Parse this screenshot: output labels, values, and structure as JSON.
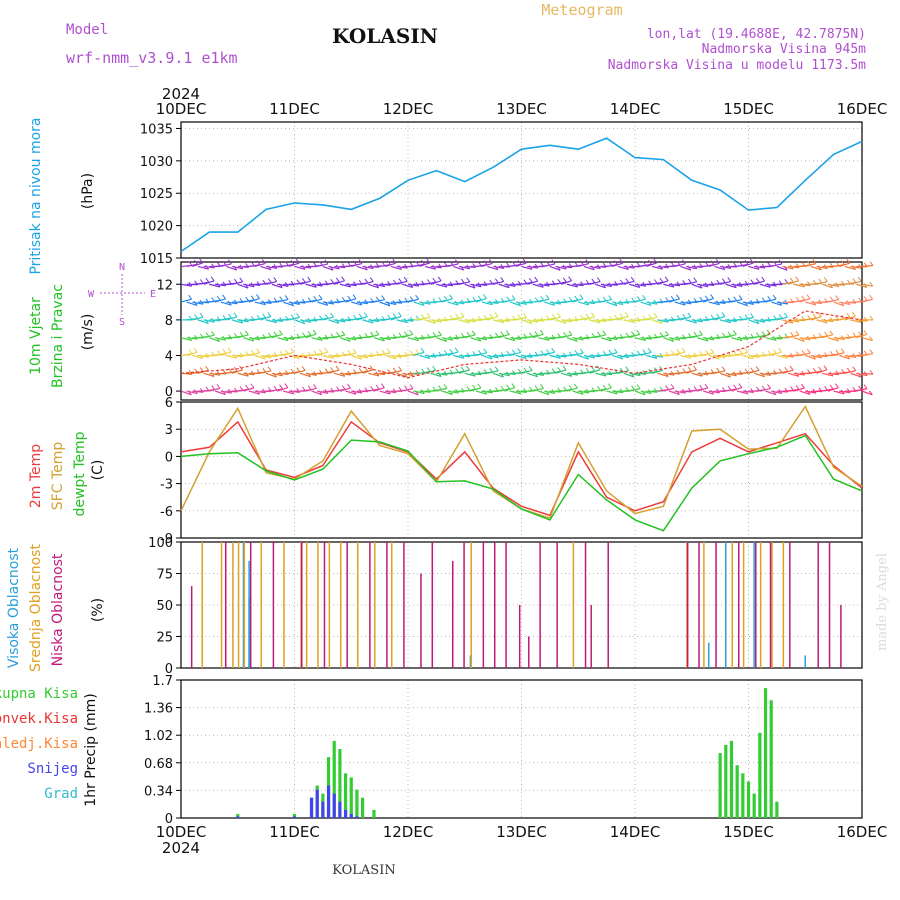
{
  "header": {
    "model_label": "Model",
    "model_name": "wrf-nmm_v3.9.1 e1km",
    "station": "KOLASIN",
    "title": "Meteogram",
    "lonlat": "lon,lat (19.4688E, 42.7875N)",
    "elevation": "Nadmorska Visina 945m",
    "model_elevation": "Nadmorska Visina u modelu 1173.5m",
    "year_top": "2024",
    "year_bottom": "2024",
    "footer_station": "KOLASIN",
    "credit": "made by Angel"
  },
  "colors": {
    "pressure": "#1aa3e8",
    "temp2m": "#ee3b3b",
    "sfc": "#d4a030",
    "dew": "#22c222",
    "high_cloud": "#2aa0d8",
    "mid_cloud": "#e0a020",
    "low_cloud": "#c0187a",
    "total_precip": "#33cc33",
    "conv_precip": "#ee3333",
    "frozen": "#ff8833",
    "snow": "#4444ee",
    "graupel": "#33bbcc",
    "purple_text": "#b050d0",
    "orange_title": "#e8b860"
  },
  "xaxis": {
    "ticks": [
      "10DEC",
      "11DEC",
      "12DEC",
      "13DEC",
      "14DEC",
      "15DEC",
      "16DEC"
    ]
  },
  "chart_data": [
    {
      "type": "line",
      "panel": "pressure",
      "ylabel_name": "Pritisak na nivou mora",
      "ylabel_unit": "(hPa)",
      "ylim": [
        1015,
        1036
      ],
      "yticks": [
        1015,
        1020,
        1025,
        1030,
        1035
      ],
      "grid": true,
      "x": [
        0,
        0.25,
        0.5,
        0.75,
        1.0,
        1.25,
        1.5,
        1.75,
        2.0,
        2.25,
        2.5,
        2.75,
        3.0,
        3.25,
        3.5,
        3.75,
        4.0,
        4.25,
        4.5,
        4.75,
        5.0,
        5.25,
        5.5,
        5.75,
        6.0
      ],
      "series": [
        {
          "color_key": "pressure",
          "values": [
            1016.0,
            1019.0,
            1019.0,
            1022.5,
            1023.5,
            1023.2,
            1022.5,
            1024.2,
            1027.0,
            1028.5,
            1026.8,
            1029.0,
            1031.8,
            1032.4,
            1031.8,
            1033.5,
            1030.5,
            1030.2,
            1027.0,
            1025.5,
            1022.4,
            1022.8,
            1027.0,
            1031.0,
            1033.0
          ]
        }
      ]
    },
    {
      "type": "barbs",
      "panel": "wind",
      "ylabel_name": "10m Vjetar",
      "ylabel_name2": "Brzina i Pravac",
      "ylabel_unit": "(m/s)",
      "compass": [
        "N",
        "W",
        "E",
        "S"
      ],
      "ylim": [
        -1,
        14.5
      ],
      "yticks": [
        0,
        4,
        8,
        12
      ],
      "levels": [
        0,
        2,
        4,
        6,
        8,
        10,
        12,
        14
      ],
      "x": [
        0,
        0.5,
        1.0,
        1.5,
        2.0,
        2.5,
        3.0,
        3.5,
        4.0,
        4.5,
        5.0,
        5.5,
        6.0
      ],
      "speed": [
        2.0,
        2.5,
        4.0,
        3.0,
        1.5,
        3.0,
        3.5,
        3.0,
        2.0,
        3.0,
        5.0,
        9.0,
        8.0
      ]
    },
    {
      "type": "line",
      "panel": "temperature",
      "ylabel_names": [
        "2m Temp",
        "SFC Temp",
        "dewpt Temp"
      ],
      "ylabel_unit": "(C)",
      "ylim": [
        -9,
        6
      ],
      "yticks": [
        -9,
        -6,
        -3,
        0,
        3,
        6
      ],
      "grid": true,
      "x": [
        0,
        0.25,
        0.5,
        0.75,
        1.0,
        1.25,
        1.5,
        1.75,
        2.0,
        2.25,
        2.5,
        2.75,
        3.0,
        3.25,
        3.5,
        3.75,
        4.0,
        4.25,
        4.5,
        4.75,
        5.0,
        5.25,
        5.5,
        5.75,
        6.0
      ],
      "series": [
        {
          "name": "2m Temp",
          "color_key": "temp2m",
          "values": [
            0.5,
            1.0,
            3.8,
            -1.5,
            -2.3,
            -1.0,
            3.8,
            1.5,
            0.5,
            -2.5,
            0.5,
            -3.5,
            -5.5,
            -6.5,
            0.5,
            -4.5,
            -6.0,
            -5.0,
            0.5,
            2.0,
            0.5,
            1.5,
            2.5,
            -1.0,
            -3.5
          ]
        },
        {
          "name": "SFC Temp",
          "color_key": "sfc",
          "values": [
            -6.0,
            0.5,
            5.3,
            -1.8,
            -2.5,
            -0.5,
            5.0,
            1.2,
            0.3,
            -2.8,
            2.5,
            -3.8,
            -5.8,
            -6.8,
            1.5,
            -3.8,
            -6.3,
            -5.5,
            2.8,
            3.0,
            0.8,
            0.9,
            5.5,
            -1.2,
            -3.3
          ]
        },
        {
          "name": "dewpt Temp",
          "color_key": "dew",
          "values": [
            0.0,
            0.3,
            0.4,
            -1.6,
            -2.6,
            -1.4,
            1.8,
            1.6,
            0.6,
            -2.8,
            -2.7,
            -3.6,
            -5.8,
            -7.0,
            -2.0,
            -4.8,
            -7.0,
            -8.2,
            -3.5,
            -0.5,
            0.3,
            1.0,
            2.3,
            -2.5,
            -3.8
          ]
        }
      ]
    },
    {
      "type": "bar",
      "panel": "clouds",
      "ylabel_names": [
        "Visoka Oblacnost",
        "Srednja Oblacnost",
        "Niska Oblacnost"
      ],
      "ylabel_unit": "(%)",
      "ylim": [
        0,
        100
      ],
      "yticks": [
        0,
        25,
        50,
        75,
        100
      ],
      "series": [
        {
          "name": "Visoka Oblacnost",
          "color_key": "high_cloud",
          "bars": [
            [
              0.55,
              100
            ],
            [
              0.6,
              85
            ],
            [
              0.6,
              55
            ],
            [
              2.55,
              10
            ],
            [
              4.65,
              20
            ],
            [
              4.8,
              100
            ],
            [
              5.05,
              100
            ],
            [
              5.5,
              10
            ]
          ]
        },
        {
          "name": "Srednja Oblacnost",
          "color_key": "mid_cloud",
          "bars": [
            [
              0.18,
              100
            ],
            [
              0.35,
              100
            ],
            [
              0.45,
              100
            ],
            [
              0.5,
              100
            ],
            [
              0.55,
              100
            ],
            [
              0.7,
              100
            ],
            [
              0.9,
              100
            ],
            [
              1.05,
              100
            ],
            [
              1.1,
              100
            ],
            [
              1.2,
              100
            ],
            [
              1.3,
              100
            ],
            [
              1.4,
              100
            ],
            [
              1.55,
              100
            ],
            [
              1.7,
              100
            ],
            [
              1.85,
              100
            ],
            [
              2.55,
              100
            ],
            [
              3.45,
              100
            ],
            [
              4.45,
              100
            ],
            [
              4.6,
              100
            ],
            [
              4.85,
              100
            ],
            [
              4.95,
              100
            ],
            [
              5.1,
              100
            ],
            [
              5.2,
              100
            ],
            [
              5.3,
              100
            ]
          ]
        },
        {
          "name": "Niska Oblacnost",
          "color_key": "low_cloud",
          "bars": [
            [
              0.08,
              65
            ],
            [
              0.38,
              100
            ],
            [
              0.6,
              100
            ],
            [
              0.8,
              100
            ],
            [
              1.05,
              100
            ],
            [
              1.25,
              100
            ],
            [
              1.45,
              100
            ],
            [
              1.65,
              100
            ],
            [
              1.8,
              100
            ],
            [
              1.95,
              100
            ],
            [
              2.1,
              75
            ],
            [
              2.2,
              100
            ],
            [
              2.38,
              85
            ],
            [
              2.48,
              100
            ],
            [
              2.65,
              100
            ],
            [
              2.75,
              100
            ],
            [
              2.85,
              100
            ],
            [
              2.97,
              50
            ],
            [
              3.05,
              25
            ],
            [
              3.15,
              100
            ],
            [
              3.3,
              100
            ],
            [
              3.55,
              100
            ],
            [
              3.6,
              50
            ],
            [
              3.75,
              100
            ],
            [
              4.45,
              100
            ],
            [
              4.55,
              100
            ],
            [
              4.7,
              100
            ],
            [
              4.9,
              100
            ],
            [
              5.05,
              100
            ],
            [
              5.18,
              100
            ],
            [
              5.35,
              100
            ],
            [
              5.6,
              100
            ],
            [
              5.7,
              100
            ],
            [
              5.8,
              50
            ]
          ]
        }
      ]
    },
    {
      "type": "bar",
      "panel": "precip",
      "ylabel_names": [
        "Ukupna Kisa",
        "Konvek.Kisa",
        "Zaledj.Kisa",
        "Snijeg",
        "Grad"
      ],
      "ylabel_unit": "1hr Precip (mm)",
      "ylim": [
        0,
        1.7
      ],
      "yticks": [
        0,
        0.34,
        0.68,
        1.02,
        1.36,
        1.7
      ],
      "x": [
        0.5,
        1.0,
        1.15,
        1.2,
        1.25,
        1.3,
        1.35,
        1.4,
        1.45,
        1.5,
        1.55,
        1.6,
        1.7,
        4.75,
        4.8,
        4.85,
        4.9,
        4.95,
        5.0,
        5.05,
        5.1,
        5.15,
        5.2,
        5.25
      ],
      "series": [
        {
          "name": "Ukupna Kisa",
          "color_key": "total_precip",
          "values": [
            0.05,
            0.05,
            0.25,
            0.4,
            0.3,
            0.75,
            0.95,
            0.85,
            0.55,
            0.5,
            0.35,
            0.25,
            0.1,
            0.8,
            0.9,
            0.95,
            0.65,
            0.55,
            0.45,
            0.3,
            1.05,
            1.6,
            1.45,
            0.2
          ]
        },
        {
          "name": "Snijeg",
          "color_key": "snow",
          "values": [
            0.02,
            0.02,
            0.25,
            0.35,
            0.2,
            0.4,
            0.3,
            0.2,
            0.1,
            0.05,
            0.02,
            0.0,
            0.0,
            0.0,
            0.0,
            0.0,
            0.0,
            0.0,
            0.0,
            0.0,
            0.0,
            0.0,
            0.0,
            0.0
          ]
        }
      ]
    }
  ]
}
